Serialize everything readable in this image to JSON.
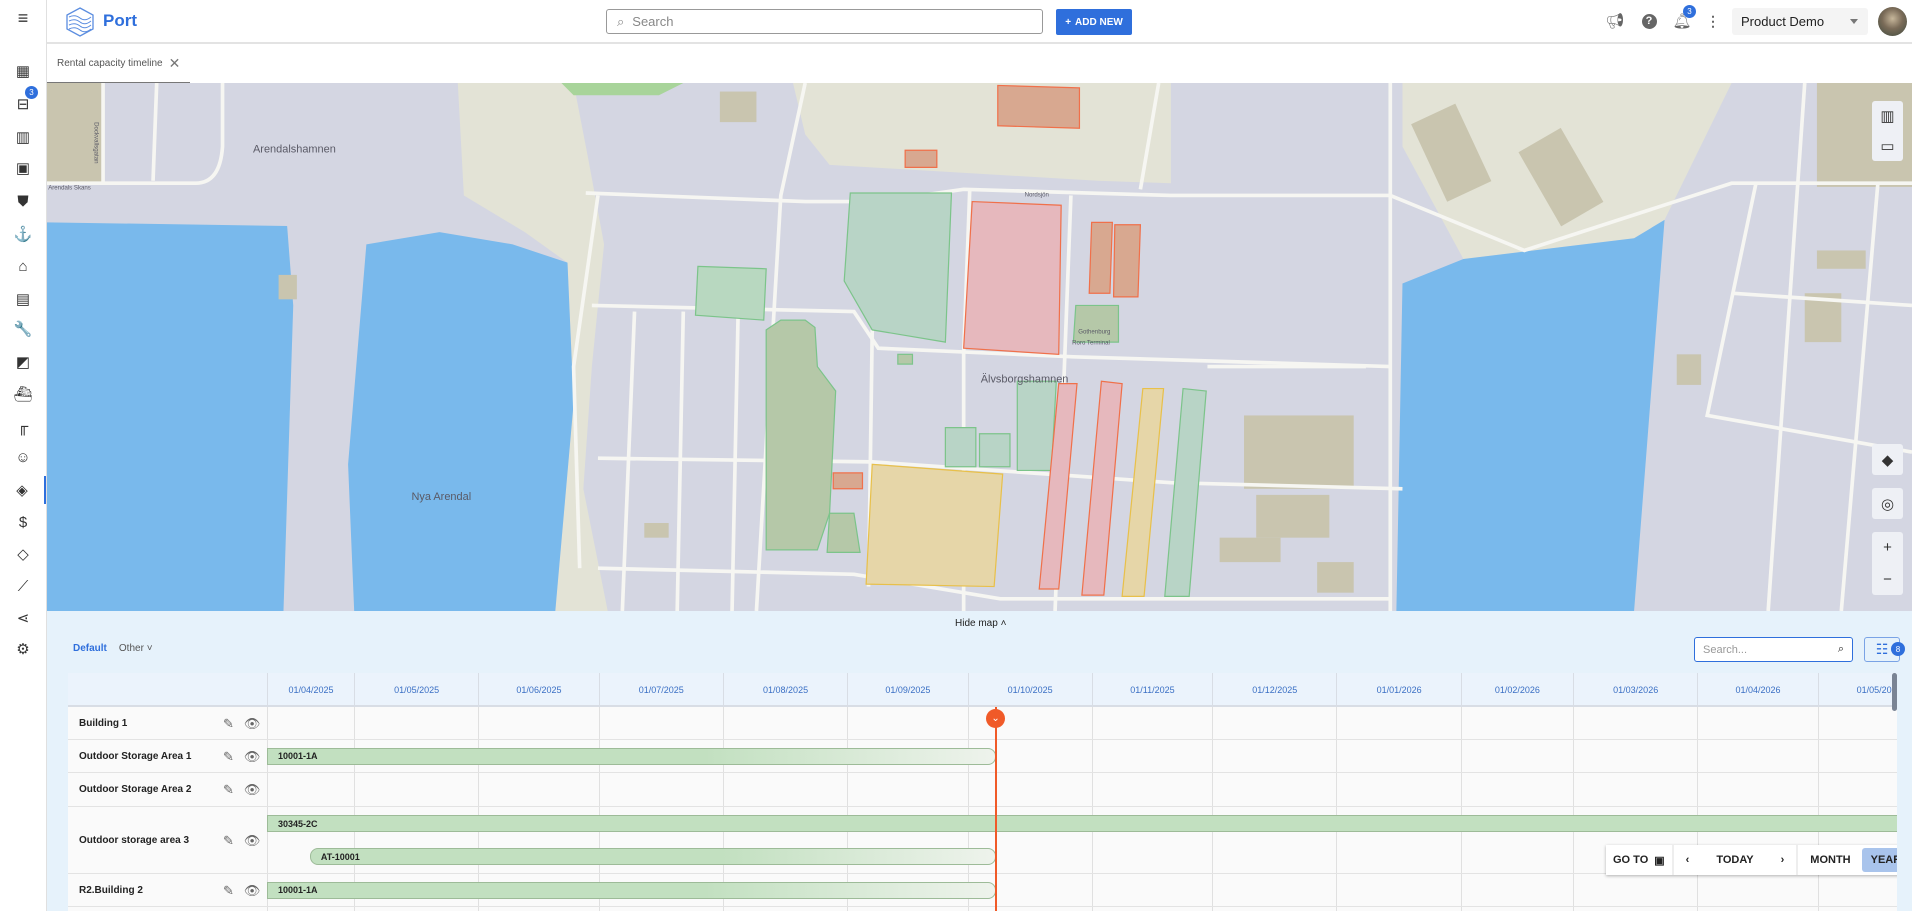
{
  "sidebar": {
    "items": [
      {
        "icon": "dashboard-icon",
        "glyph": "▦"
      },
      {
        "icon": "inbox-icon",
        "glyph": "⊟",
        "badge": "3"
      },
      {
        "icon": "map-icon",
        "glyph": "▥"
      },
      {
        "icon": "photo-library-icon",
        "glyph": "▣"
      },
      {
        "icon": "shield-icon",
        "glyph": "⛊"
      },
      {
        "icon": "anchor-icon",
        "glyph": "⚓"
      },
      {
        "icon": "warehouse-icon",
        "glyph": "⌂"
      },
      {
        "icon": "clipboard-icon",
        "glyph": "▤"
      },
      {
        "icon": "wrench-icon",
        "glyph": "🔧"
      },
      {
        "icon": "image-icon",
        "glyph": "◩"
      },
      {
        "icon": "ship-icon",
        "glyph": "⛴"
      },
      {
        "icon": "crane-icon",
        "glyph": "╓"
      },
      {
        "icon": "face-icon",
        "glyph": "☺"
      },
      {
        "icon": "handshake-icon",
        "glyph": "◈",
        "active": true
      },
      {
        "icon": "dollar-icon",
        "glyph": "$"
      },
      {
        "icon": "tag-icon",
        "glyph": "◇"
      },
      {
        "icon": "analytics-icon",
        "glyph": "⟋"
      },
      {
        "icon": "share-icon",
        "glyph": "⋖"
      },
      {
        "icon": "settings-icon",
        "glyph": "⚙"
      }
    ]
  },
  "header": {
    "brand": "Port",
    "search_placeholder": "Search",
    "add_new": "ADD NEW",
    "notifications": "3",
    "account": "Product Demo"
  },
  "tab": {
    "label": "Rental capacity timeline"
  },
  "map": {
    "labels": {
      "arendalshamnen": "Arendalshamnen",
      "nya_arendal": "Nya Arendal",
      "alvsborgshamnen": "Älvsborgshamnen",
      "roro1": "Gothenburg",
      "roro2": "Roro Terminal",
      "nordsjon": "Nordsjön",
      "arendals_skans": "Arendals Skans",
      "dockvallsgatan": "Dockvallsgatan"
    },
    "colors": {
      "water": "#79b9ec",
      "ground": "#d4d6e2",
      "land": "#e3e3d6",
      "available": "#7cc48a",
      "occupied": "#f0704a",
      "partial": "#e8c04a"
    }
  },
  "panel": {
    "hide_map": "Hide map",
    "views": {
      "default": "Default",
      "other": "Other"
    },
    "search_placeholder": "Search...",
    "filter_count": "8"
  },
  "timeline": {
    "months": [
      "01/04/2025",
      "01/05/2025",
      "01/06/2025",
      "01/07/2025",
      "01/08/2025",
      "01/09/2025",
      "01/10/2025",
      "01/11/2025",
      "01/12/2025",
      "01/01/2026",
      "01/02/2026",
      "01/03/2026",
      "01/04/2026",
      "01/05/2026"
    ],
    "rows": [
      {
        "name": "Building 1",
        "bookings": []
      },
      {
        "name": "Outdoor Storage Area 1",
        "bookings": [
          {
            "label": "10001-1A",
            "start": "2025-03-01",
            "end": "2025-10-08",
            "style": "fade"
          }
        ]
      },
      {
        "name": "Outdoor Storage Area 2",
        "bookings": []
      },
      {
        "name": "Outdoor storage area 3",
        "bookings": [
          {
            "label": "30345-2C",
            "start": "2025-03-01",
            "end": "2026-06-30",
            "style": "solid",
            "lane": 0
          },
          {
            "label": "AT-10001",
            "start": "2025-04-20",
            "end": "2025-10-08",
            "style": "fade",
            "lane": 1
          }
        ]
      },
      {
        "name": "R2.Building 2",
        "bookings": [
          {
            "label": "10001-1A",
            "start": "2025-03-01",
            "end": "2025-10-08",
            "style": "fade"
          }
        ]
      }
    ],
    "today_color": "#f05a28",
    "nav": {
      "goto": "GO TO",
      "today": "TODAY",
      "month": "MONTH",
      "year": "YEAR",
      "selected": "YEAR"
    }
  }
}
